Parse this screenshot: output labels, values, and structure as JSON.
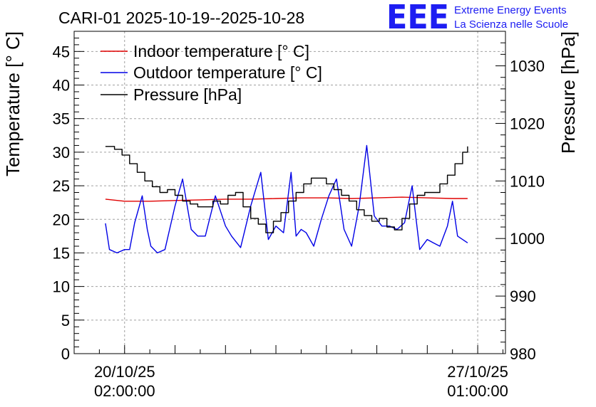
{
  "title": "CARI-01 2025-10-19--2025-10-28",
  "logo": {
    "letters": "EEE",
    "line1": "Extreme Energy Events",
    "line2": "La Scienza nelle Scuole",
    "color": "#1d1df2"
  },
  "chart_data": {
    "type": "line",
    "title": "CARI-01 2025-10-19--2025-10-28",
    "xlabel": "",
    "ylabel": "Temperature [° C]",
    "y2label": "Pressure [hPa]",
    "ylim": [
      0,
      48
    ],
    "y2lim": [
      980,
      1036
    ],
    "xlim_days": [
      -1.0,
      7.55
    ],
    "grid": true,
    "legend_position": "top-left",
    "x_unit": "days since 20/10/25 02:00:00",
    "x_ticks": [
      {
        "day": 0,
        "date": "20/10/25",
        "time": "02:00:00"
      },
      {
        "day": 7,
        "date": "27/10/25",
        "time": "01:00:00"
      }
    ],
    "y_ticks": [
      0,
      5,
      10,
      15,
      20,
      25,
      30,
      35,
      40,
      45
    ],
    "y2_ticks": [
      980,
      990,
      1000,
      1010,
      1020,
      1030
    ],
    "series": [
      {
        "name": "Indoor temperature [° C]",
        "axis": "left",
        "color": "#e00000",
        "x": [
          -0.38,
          0.0,
          0.5,
          1.0,
          1.5,
          2.0,
          2.5,
          3.0,
          3.5,
          4.0,
          4.5,
          5.0,
          5.5,
          6.0,
          6.5,
          6.8
        ],
        "values": [
          23.0,
          22.7,
          22.7,
          22.8,
          22.9,
          23.0,
          23.0,
          23.1,
          23.2,
          23.2,
          23.1,
          23.2,
          23.3,
          23.2,
          23.1,
          23.1
        ]
      },
      {
        "name": "Outdoor temperature [° C]",
        "axis": "left",
        "color": "#0000e6",
        "x": [
          -0.38,
          -0.3,
          -0.15,
          0.0,
          0.1,
          0.2,
          0.35,
          0.45,
          0.52,
          0.65,
          0.8,
          1.0,
          1.15,
          1.32,
          1.45,
          1.6,
          1.8,
          2.0,
          2.12,
          2.3,
          2.5,
          2.7,
          2.85,
          3.0,
          3.15,
          3.3,
          3.4,
          3.5,
          3.6,
          3.75,
          3.9,
          4.05,
          4.2,
          4.35,
          4.5,
          4.65,
          4.8,
          4.95,
          5.1,
          5.25,
          5.4,
          5.55,
          5.7,
          5.85,
          6.0,
          6.12,
          6.25,
          6.4,
          6.5,
          6.6,
          6.8
        ],
        "values": [
          19.4,
          15.5,
          15.0,
          15.5,
          15.5,
          19.5,
          23.5,
          18.5,
          16.0,
          15.0,
          15.5,
          22.0,
          26.0,
          18.5,
          17.5,
          17.5,
          23.5,
          19.0,
          17.5,
          15.8,
          22.0,
          27.0,
          17.0,
          19.0,
          18.0,
          27.0,
          17.5,
          18.5,
          18.0,
          16.0,
          20.0,
          23.5,
          26.0,
          18.5,
          16.0,
          22.0,
          31.0,
          20.5,
          19.0,
          19.0,
          18.5,
          19.5,
          25.0,
          15.5,
          17.0,
          16.5,
          16.0,
          19.0,
          22.7,
          17.5,
          16.5
        ]
      },
      {
        "name": "Pressure [hPa]",
        "axis": "right",
        "color": "#000000",
        "step": true,
        "x": [
          -0.38,
          -0.2,
          -0.05,
          0.1,
          0.25,
          0.4,
          0.55,
          0.7,
          0.85,
          1.0,
          1.15,
          1.3,
          1.45,
          1.6,
          1.75,
          1.9,
          2.05,
          2.2,
          2.35,
          2.5,
          2.65,
          2.8,
          2.95,
          3.1,
          3.25,
          3.4,
          3.55,
          3.7,
          3.85,
          4.0,
          4.15,
          4.3,
          4.45,
          4.6,
          4.75,
          4.9,
          5.05,
          5.2,
          5.35,
          5.5,
          5.65,
          5.8,
          5.95,
          6.1,
          6.25,
          6.4,
          6.55,
          6.7,
          6.8
        ],
        "values": [
          1016.0,
          1015.5,
          1014.5,
          1013.0,
          1011.5,
          1010.0,
          1009.0,
          1008.0,
          1008.5,
          1007.5,
          1006.5,
          1006.0,
          1005.5,
          1005.5,
          1006.5,
          1006.0,
          1007.5,
          1008.0,
          1005.5,
          1003.5,
          1002.5,
          1001.0,
          1003.0,
          1004.5,
          1006.5,
          1008.0,
          1009.5,
          1010.5,
          1010.5,
          1009.5,
          1008.5,
          1007.5,
          1006.5,
          1005.0,
          1004.0,
          1003.0,
          1003.5,
          1002.0,
          1001.5,
          1003.5,
          1006.0,
          1007.5,
          1008.0,
          1008.0,
          1009.5,
          1011.0,
          1013.0,
          1015.0,
          1016.0
        ]
      }
    ]
  }
}
